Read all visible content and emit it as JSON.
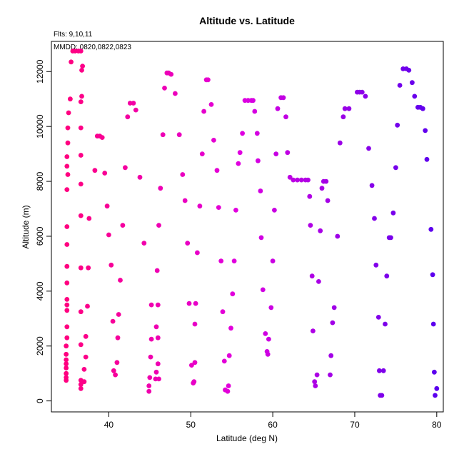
{
  "chart_data": {
    "type": "scatter",
    "title": "Altitude vs. Latitude",
    "annotations": {
      "fits": "Flts: 9,10,11",
      "dates": "MMDD: 0820,0822,0823"
    },
    "xlabel": "Latitude (deg N)",
    "ylabel": "Altitude (m)",
    "xlim": [
      33,
      80.8
    ],
    "ylim": [
      -400,
      13100
    ],
    "xticks": [
      40,
      50,
      60,
      70,
      80
    ],
    "yticks": [
      0,
      2000,
      4000,
      6000,
      8000,
      10000,
      12000
    ],
    "grid": false,
    "legend": "none",
    "colors": {
      "low_lat": "#ff0080",
      "mid_lat": "#e000e0",
      "high_lat": "#5a00ee"
    },
    "points": [
      [
        34.8,
        750
      ],
      [
        34.8,
        850
      ],
      [
        34.8,
        1000
      ],
      [
        34.8,
        1200
      ],
      [
        34.8,
        1350
      ],
      [
        34.8,
        1500
      ],
      [
        34.8,
        1700
      ],
      [
        34.8,
        2000
      ],
      [
        34.9,
        2300
      ],
      [
        34.9,
        2700
      ],
      [
        34.9,
        3300
      ],
      [
        34.9,
        3500
      ],
      [
        34.9,
        3700
      ],
      [
        34.9,
        4300
      ],
      [
        34.9,
        4900
      ],
      [
        34.9,
        5700
      ],
      [
        34.9,
        6350
      ],
      [
        34.9,
        7700
      ],
      [
        35.0,
        8250
      ],
      [
        34.9,
        8550
      ],
      [
        34.9,
        8900
      ],
      [
        35.0,
        9400
      ],
      [
        35.0,
        9950
      ],
      [
        35.1,
        10500
      ],
      [
        35.3,
        11000
      ],
      [
        35.4,
        12350
      ],
      [
        35.6,
        12750
      ],
      [
        35.9,
        12750
      ],
      [
        36.3,
        12750
      ],
      [
        36.6,
        12750
      ],
      [
        36.6,
        450
      ],
      [
        36.6,
        600
      ],
      [
        36.6,
        750
      ],
      [
        37.0,
        700
      ],
      [
        37.0,
        1150
      ],
      [
        37.2,
        1600
      ],
      [
        36.6,
        2050
      ],
      [
        37.2,
        2350
      ],
      [
        36.6,
        3250
      ],
      [
        37.4,
        3450
      ],
      [
        36.6,
        4850
      ],
      [
        37.5,
        4850
      ],
      [
        36.6,
        6750
      ],
      [
        37.6,
        6650
      ],
      [
        36.6,
        7900
      ],
      [
        36.6,
        8950
      ],
      [
        36.6,
        9950
      ],
      [
        36.6,
        10900
      ],
      [
        36.7,
        11100
      ],
      [
        36.7,
        12050
      ],
      [
        36.8,
        12200
      ],
      [
        38.3,
        8400
      ],
      [
        38.6,
        9650
      ],
      [
        38.9,
        9650
      ],
      [
        39.2,
        9600
      ],
      [
        39.5,
        8300
      ],
      [
        39.8,
        7100
      ],
      [
        40.0,
        6050
      ],
      [
        40.3,
        4950
      ],
      [
        40.5,
        2900
      ],
      [
        40.6,
        1100
      ],
      [
        40.8,
        950
      ],
      [
        41.0,
        1400
      ],
      [
        41.1,
        2300
      ],
      [
        41.2,
        3150
      ],
      [
        41.4,
        4400
      ],
      [
        41.7,
        6400
      ],
      [
        42.0,
        8500
      ],
      [
        42.3,
        10350
      ],
      [
        42.6,
        10850
      ],
      [
        43.0,
        10850
      ],
      [
        43.3,
        10600
      ],
      [
        43.8,
        8150
      ],
      [
        44.3,
        5750
      ],
      [
        44.9,
        350
      ],
      [
        44.9,
        550
      ],
      [
        45.0,
        850
      ],
      [
        45.1,
        1600
      ],
      [
        45.2,
        2250
      ],
      [
        45.2,
        3500
      ],
      [
        45.7,
        800
      ],
      [
        45.8,
        1050
      ],
      [
        45.8,
        2700
      ],
      [
        45.9,
        4750
      ],
      [
        46.0,
        3500
      ],
      [
        46.0,
        2300
      ],
      [
        46.0,
        1350
      ],
      [
        46.1,
        800
      ],
      [
        46.1,
        6400
      ],
      [
        46.3,
        7750
      ],
      [
        46.6,
        9700
      ],
      [
        46.8,
        11400
      ],
      [
        47.1,
        11950
      ],
      [
        47.3,
        11950
      ],
      [
        47.6,
        11900
      ],
      [
        48.1,
        11200
      ],
      [
        48.6,
        9700
      ],
      [
        49.0,
        8250
      ],
      [
        49.3,
        7300
      ],
      [
        49.6,
        5750
      ],
      [
        49.8,
        3550
      ],
      [
        50.1,
        1300
      ],
      [
        50.3,
        650
      ],
      [
        50.4,
        700
      ],
      [
        50.5,
        1400
      ],
      [
        50.5,
        2800
      ],
      [
        50.6,
        3550
      ],
      [
        50.8,
        5400
      ],
      [
        51.1,
        7100
      ],
      [
        51.4,
        9000
      ],
      [
        51.6,
        10550
      ],
      [
        51.9,
        11700
      ],
      [
        52.1,
        11700
      ],
      [
        52.5,
        10800
      ],
      [
        52.8,
        9500
      ],
      [
        53.2,
        8400
      ],
      [
        53.4,
        7050
      ],
      [
        53.7,
        5100
      ],
      [
        53.9,
        3250
      ],
      [
        54.1,
        1450
      ],
      [
        54.2,
        400
      ],
      [
        54.5,
        350
      ],
      [
        54.6,
        550
      ],
      [
        54.7,
        1650
      ],
      [
        54.9,
        2650
      ],
      [
        55.1,
        3900
      ],
      [
        55.3,
        5100
      ],
      [
        55.5,
        6950
      ],
      [
        55.8,
        8650
      ],
      [
        56.0,
        9050
      ],
      [
        56.3,
        9750
      ],
      [
        56.6,
        10950
      ],
      [
        57.0,
        10950
      ],
      [
        57.4,
        10950
      ],
      [
        57.6,
        10950
      ],
      [
        57.8,
        10550
      ],
      [
        58.1,
        9750
      ],
      [
        58.2,
        8750
      ],
      [
        58.5,
        7650
      ],
      [
        58.6,
        5950
      ],
      [
        58.8,
        4050
      ],
      [
        59.1,
        2450
      ],
      [
        59.3,
        1800
      ],
      [
        59.4,
        1700
      ],
      [
        59.5,
        2250
      ],
      [
        59.8,
        3400
      ],
      [
        60.0,
        5100
      ],
      [
        60.2,
        6950
      ],
      [
        60.4,
        9000
      ],
      [
        60.6,
        10650
      ],
      [
        61.0,
        11050
      ],
      [
        61.3,
        11050
      ],
      [
        61.6,
        10350
      ],
      [
        61.8,
        9050
      ],
      [
        62.1,
        8150
      ],
      [
        62.5,
        8050
      ],
      [
        63.0,
        8050
      ],
      [
        63.5,
        8050
      ],
      [
        64.0,
        8050
      ],
      [
        64.3,
        8050
      ],
      [
        64.5,
        7450
      ],
      [
        64.6,
        6400
      ],
      [
        64.8,
        4550
      ],
      [
        64.9,
        2550
      ],
      [
        65.1,
        700
      ],
      [
        65.2,
        550
      ],
      [
        65.4,
        950
      ],
      [
        65.6,
        4350
      ],
      [
        65.8,
        6200
      ],
      [
        66.0,
        7750
      ],
      [
        66.2,
        8000
      ],
      [
        66.5,
        8000
      ],
      [
        66.7,
        7300
      ],
      [
        67.0,
        950
      ],
      [
        67.1,
        1650
      ],
      [
        67.3,
        2850
      ],
      [
        67.5,
        3400
      ],
      [
        67.9,
        6000
      ],
      [
        68.2,
        9400
      ],
      [
        68.6,
        10350
      ],
      [
        68.8,
        10650
      ],
      [
        69.3,
        10650
      ],
      [
        70.3,
        11250
      ],
      [
        70.6,
        11250
      ],
      [
        70.9,
        11250
      ],
      [
        71.3,
        11100
      ],
      [
        71.7,
        9200
      ],
      [
        72.1,
        7850
      ],
      [
        72.4,
        6650
      ],
      [
        72.6,
        4950
      ],
      [
        72.9,
        3050
      ],
      [
        73.0,
        1100
      ],
      [
        73.1,
        200
      ],
      [
        73.3,
        200
      ],
      [
        73.5,
        1100
      ],
      [
        73.7,
        2800
      ],
      [
        73.9,
        4550
      ],
      [
        74.2,
        5950
      ],
      [
        74.4,
        5950
      ],
      [
        74.7,
        6850
      ],
      [
        75.0,
        8500
      ],
      [
        75.2,
        10050
      ],
      [
        75.5,
        11500
      ],
      [
        75.9,
        12100
      ],
      [
        76.3,
        12100
      ],
      [
        76.6,
        12050
      ],
      [
        77.0,
        11600
      ],
      [
        77.3,
        11100
      ],
      [
        77.7,
        10700
      ],
      [
        78.0,
        10700
      ],
      [
        78.3,
        10650
      ],
      [
        78.6,
        9850
      ],
      [
        78.8,
        8800
      ],
      [
        79.3,
        6250
      ],
      [
        79.5,
        4600
      ],
      [
        79.6,
        2800
      ],
      [
        79.7,
        1050
      ],
      [
        79.8,
        200
      ],
      [
        80.0,
        450
      ]
    ]
  }
}
